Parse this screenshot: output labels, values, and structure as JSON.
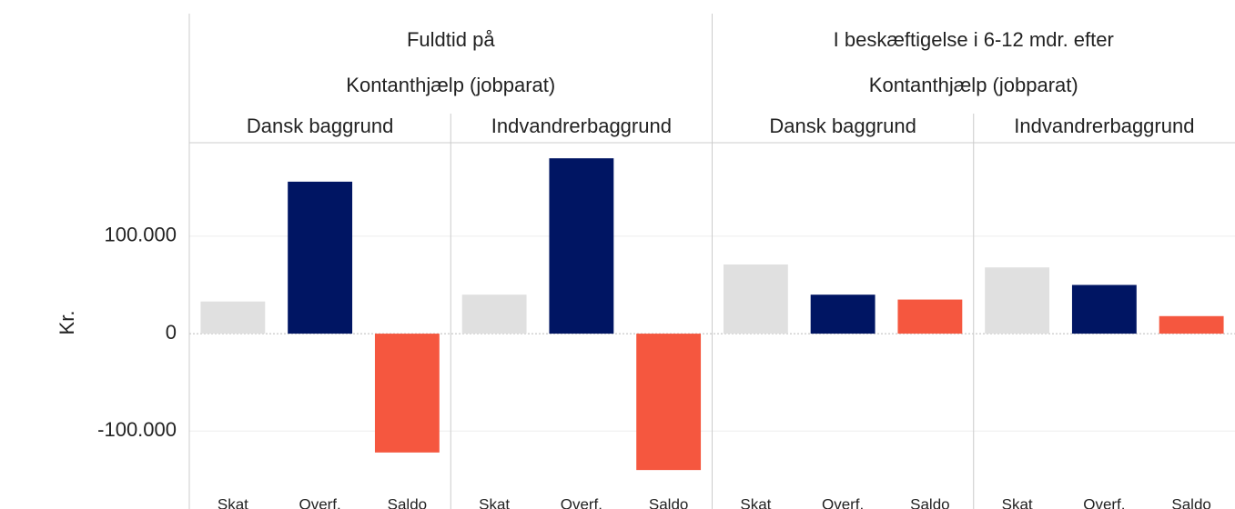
{
  "chart_data": {
    "type": "bar",
    "y_label": "Kr.",
    "categories": [
      "Skat",
      "Overf.",
      "Saldo"
    ],
    "colors": [
      "#e0e0e0",
      "#001563",
      "#f5573f"
    ],
    "ylim": [
      -166000,
      196000
    ],
    "yticks": [
      {
        "value": -100000,
        "label": "-100.000"
      },
      0,
      {
        "value": 100000,
        "label": "100.000"
      }
    ],
    "grid": true,
    "column_groups": [
      {
        "title": "Fuldtid på",
        "subtitle": "Kontanthjælp (jobparat)",
        "panels": [
          {
            "title": "Dansk baggrund",
            "values": [
              33000,
              156000,
              -122000
            ]
          },
          {
            "title": "Indvandrerbaggrund",
            "values": [
              40000,
              180000,
              -140000
            ]
          }
        ]
      },
      {
        "title": "I beskæftigelse i 6-12 mdr. efter",
        "subtitle": "Kontanthjælp (jobparat)",
        "panels": [
          {
            "title": "Dansk baggrund",
            "values": [
              71000,
              40000,
              35000
            ]
          },
          {
            "title": "Indvandrerbaggrund",
            "values": [
              68000,
              50000,
              18000
            ]
          }
        ]
      }
    ]
  }
}
